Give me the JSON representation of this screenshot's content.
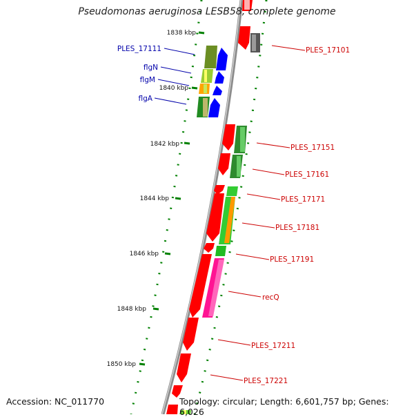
{
  "title": "Pseudomonas aeruginosa LESB58, complete genome",
  "footer": {
    "accession": "Accession: NC_011770",
    "topology": "Topology: circular; Length: 6,601,757 bp; Genes: 6,026"
  },
  "colors": {
    "backbone": "#8c8c8c",
    "forward_cds": "#ff0000",
    "reverse_cds": "#0000ff",
    "label_left": "#0000aa",
    "label_right": "#cc0000",
    "tick": "#008000"
  },
  "ticks": [
    "1838 kbp",
    "1840 kbp",
    "1842 kbp",
    "1844 kbp",
    "1846 kbp",
    "1848 kbp",
    "1850 kbp"
  ],
  "labels_left": [
    "PLES_17111",
    "flgN",
    "flgM",
    "flgA"
  ],
  "labels_right": [
    "PLES_17101",
    "PLES_17151",
    "PLES_17161",
    "PLES_17171",
    "PLES_17181",
    "PLES_17191",
    "recQ",
    "PLES_17211",
    "PLES_17221"
  ]
}
